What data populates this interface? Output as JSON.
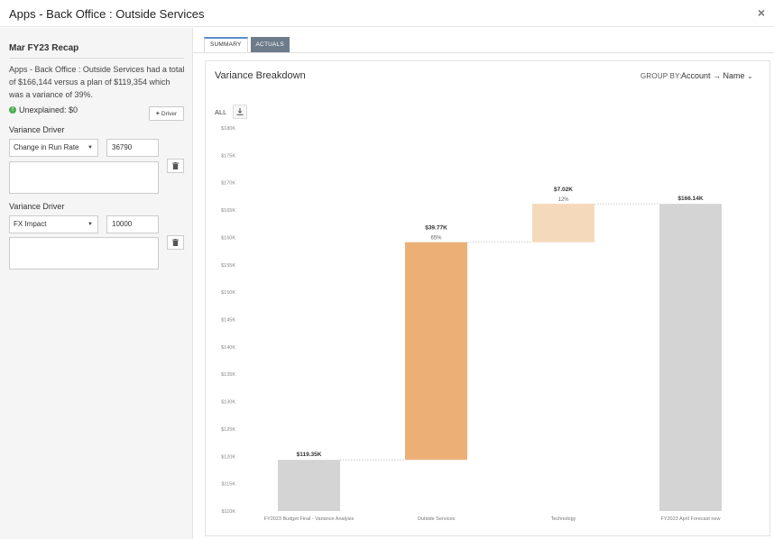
{
  "window": {
    "title": "Apps - Back Office : Outside Services",
    "close_label": "×"
  },
  "sidebar": {
    "recap_title": "Mar FY23 Recap",
    "recap_text": "Apps - Back Office : Outside Services had a total of $166,144 versus a plan of $119,354 which was a variance of 39%.",
    "unexplained": "Unexplained: $0",
    "add_driver_label": "Driver",
    "drivers": [
      {
        "label": "Variance Driver",
        "selected": "Change in Run Rate",
        "value": "36790",
        "notes": ""
      },
      {
        "label": "Variance Driver",
        "selected": "FX Impact",
        "value": "10000",
        "notes": ""
      }
    ]
  },
  "tabs": [
    {
      "label": "SUMMARY",
      "active": true
    },
    {
      "label": "ACTUALS",
      "active": false
    }
  ],
  "panel": {
    "title": "Variance Breakdown",
    "group_by_label": "GROUP BY:",
    "group_by_value": "Account → Name",
    "all_label": "ALL"
  },
  "colors": {
    "base_bar": "#d4d4d4",
    "primary_bar": "#ecb077",
    "secondary_bar": "#f5d9bb",
    "accent": "#5b8dc9"
  },
  "chart_data": {
    "type": "bar",
    "subtype": "waterfall",
    "ylim": [
      110000,
      180000
    ],
    "ytick_labels": [
      "$180K",
      "$175K",
      "$170K",
      "$165K",
      "$160K",
      "$155K",
      "$150K",
      "$145K",
      "$140K",
      "$135K",
      "$130K",
      "$125K",
      "$120K",
      "$115K",
      "$110K"
    ],
    "categories": [
      "FY2023 Budget Final - Variance Analysis",
      "Outside Services",
      "Technology",
      "FY2023 April Forecast new"
    ],
    "bars": [
      {
        "category": "FY2023 Budget Final - Variance Analysis",
        "kind": "total",
        "start": 110000,
        "end": 119354,
        "label": "$119.35K",
        "pct": ""
      },
      {
        "category": "Outside Services",
        "kind": "delta",
        "start": 119354,
        "end": 159124,
        "label": "$39.77K",
        "pct": "65%"
      },
      {
        "category": "Technology",
        "kind": "delta",
        "start": 159124,
        "end": 166144,
        "label": "$7.02K",
        "pct": "12%"
      },
      {
        "category": "FY2023 April Forecast new",
        "kind": "total",
        "start": 110000,
        "end": 166144,
        "label": "$166.14K",
        "pct": ""
      }
    ]
  }
}
